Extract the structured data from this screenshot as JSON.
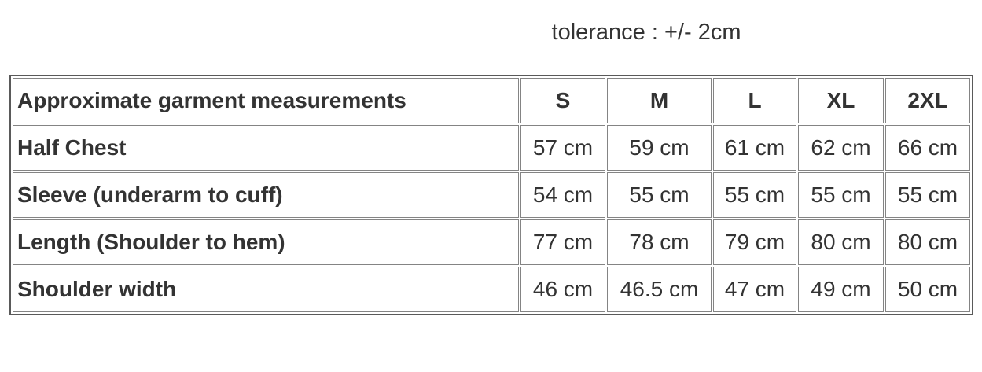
{
  "chart_data": {
    "type": "table",
    "title": "tolerance : +/- 2cm",
    "columns": [
      "Approximate garment measurements",
      "S",
      "M",
      "L",
      "XL",
      "2XL"
    ],
    "rows": [
      [
        "Half Chest",
        "57 cm",
        "59 cm",
        "61 cm",
        "62 cm",
        "66 cm"
      ],
      [
        "Sleeve (underarm to cuff)",
        "54 cm",
        "55 cm",
        "55 cm",
        "55 cm",
        "55 cm"
      ],
      [
        "Length (Shoulder to hem)",
        "77 cm",
        "78 cm",
        "79 cm",
        "80 cm",
        "80 cm"
      ],
      [
        "Shoulder width",
        "46 cm",
        "46.5 cm",
        "47 cm",
        "49 cm",
        "50 cm"
      ]
    ]
  },
  "colors": {
    "text": "#333333",
    "outer_border": "#5a5a5a",
    "cell_border": "#848484",
    "background": "#ffffff"
  }
}
